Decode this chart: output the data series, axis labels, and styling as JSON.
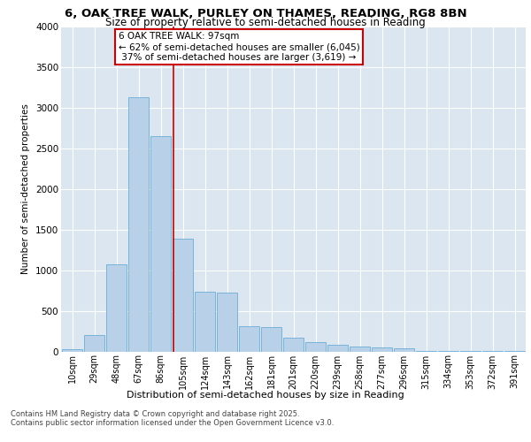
{
  "title_line1": "6, OAK TREE WALK, PURLEY ON THAMES, READING, RG8 8BN",
  "title_line2": "Size of property relative to semi-detached houses in Reading",
  "xlabel": "Distribution of semi-detached houses by size in Reading",
  "ylabel": "Number of semi-detached properties",
  "categories": [
    "10sqm",
    "29sqm",
    "48sqm",
    "67sqm",
    "86sqm",
    "105sqm",
    "124sqm",
    "143sqm",
    "162sqm",
    "181sqm",
    "201sqm",
    "220sqm",
    "239sqm",
    "258sqm",
    "277sqm",
    "296sqm",
    "315sqm",
    "334sqm",
    "353sqm",
    "372sqm",
    "391sqm"
  ],
  "values": [
    30,
    200,
    1070,
    3130,
    2650,
    1390,
    730,
    720,
    310,
    300,
    170,
    115,
    80,
    65,
    50,
    40,
    10,
    5,
    5,
    2,
    2
  ],
  "bar_color": "#b8d0e8",
  "bar_edge_color": "#6baed6",
  "property_label": "6 OAK TREE WALK: 97sqm",
  "pct_smaller": 62,
  "pct_larger": 37,
  "n_smaller": 6045,
  "n_larger": 3619,
  "vline_color": "#cc0000",
  "vline_position": 4.58,
  "annotation_box_color": "#cc0000",
  "ylim": [
    0,
    4000
  ],
  "yticks": [
    0,
    500,
    1000,
    1500,
    2000,
    2500,
    3000,
    3500,
    4000
  ],
  "background_color": "#dce6f0",
  "grid_color": "#ffffff",
  "footer_line1": "Contains HM Land Registry data © Crown copyright and database right 2025.",
  "footer_line2": "Contains public sector information licensed under the Open Government Licence v3.0."
}
